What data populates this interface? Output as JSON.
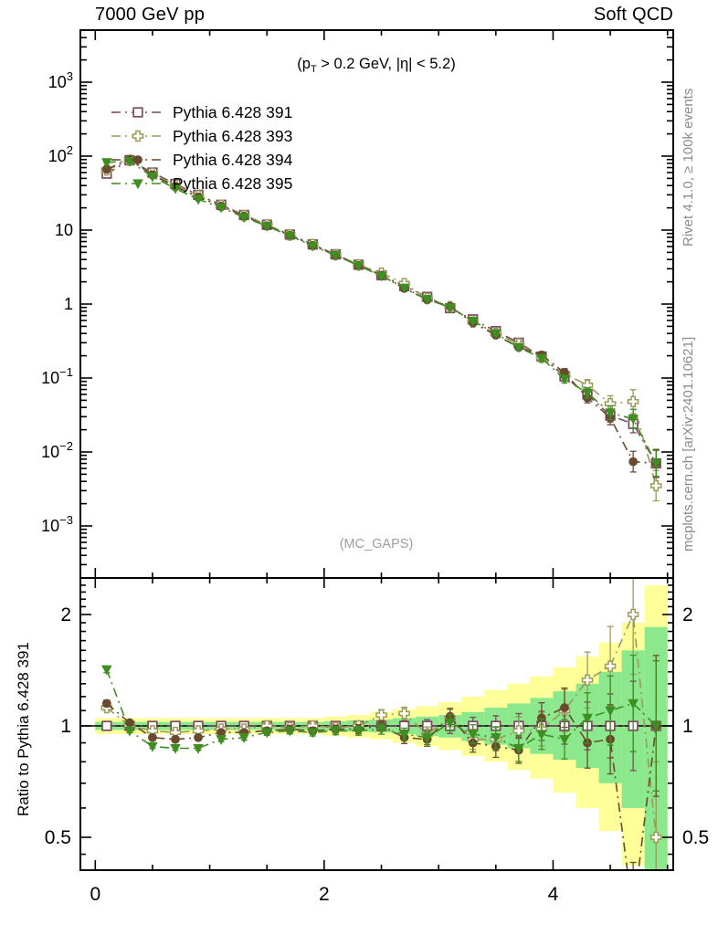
{
  "figure": {
    "title_left": "7000 GeV pp",
    "title_right": "Soft QCD",
    "annotation": {
      "pre": "(p",
      "sub": "T",
      "post": " > 0.2 GeV, |η| < 5.2)"
    },
    "watermark": "(MC_GAPS)",
    "side_label_top": "Rivet 4.1.0, ≥ 100k events",
    "side_label_bottom": "mcplots.cern.ch [arXiv:2401.10621]",
    "ratio_axis_label": "Ratio to Pythia 6.428 391"
  },
  "colors": {
    "frame": "#000000",
    "gray_text": "#8c8c8c",
    "watermark_text": "#9e9e9e",
    "band_yellow": "#ffff99",
    "band_green": "#8ce88c",
    "series_391": "#7a4a5e",
    "series_393": "#9a9a5a",
    "series_394": "#6a4a2e",
    "series_395": "#3e8e22"
  },
  "chart_data": {
    "type": "line",
    "xlabel": "",
    "ylabel_main": "",
    "ylabel_ratio": "Ratio to Pythia 6.428 391",
    "axes": {
      "xlim": [
        -0.13,
        5.05
      ],
      "main_ylog_lim": [
        -3.7,
        3.7
      ],
      "ratio_lim": [
        0.41,
        2.51
      ],
      "x_major_ticks": [
        0,
        2,
        4
      ],
      "x_minor_ticks": [
        0.5,
        1,
        1.5,
        2.5,
        3,
        3.5,
        4.5,
        5
      ],
      "x_tick_labels": [
        {
          "v": 0,
          "t": "0"
        },
        {
          "v": 2,
          "t": "2"
        },
        {
          "v": 4,
          "t": "4"
        }
      ],
      "main_y_tick_labels": [
        {
          "v": 1000,
          "m": "10",
          "e": "3"
        },
        {
          "v": 100,
          "m": "10",
          "e": "2"
        },
        {
          "v": 10,
          "m": "10",
          "e": ""
        },
        {
          "v": 1,
          "m": "1",
          "e": ""
        },
        {
          "v": 0.1,
          "m": "10",
          "e": "−1"
        },
        {
          "v": 0.01,
          "m": "10",
          "e": "−2"
        },
        {
          "v": 0.001,
          "m": "10",
          "e": "−3"
        }
      ],
      "ratio_y_tick_labels": [
        {
          "v": 2,
          "t": "2"
        },
        {
          "v": 1,
          "t": "1"
        },
        {
          "v": 0.5,
          "t": "0.5"
        }
      ],
      "ratio_y_minor_ticks": [
        0.45,
        0.6,
        0.7,
        0.8,
        0.9,
        1.1,
        1.2,
        1.3,
        1.4,
        1.5,
        1.6,
        1.7,
        1.8,
        1.9,
        2.1,
        2.2,
        2.3,
        2.4,
        2.5
      ],
      "grid": false,
      "legend_position": "top-left-inside"
    },
    "bin_half_width": 0.1,
    "x": [
      0.1,
      0.3,
      0.5,
      0.7,
      0.9,
      1.1,
      1.3,
      1.5,
      1.7,
      1.9,
      2.1,
      2.3,
      2.5,
      2.7,
      2.9,
      3.1,
      3.3,
      3.5,
      3.7,
      3.9,
      4.1,
      4.3,
      4.5,
      4.7,
      4.9
    ],
    "series": [
      {
        "name": "Pythia 6.428 391",
        "marker": "square-open",
        "color": "#7a4a5e",
        "is_reference": true,
        "values": [
          58,
          88,
          60,
          42,
          30,
          22,
          16,
          11.8,
          8.7,
          6.4,
          4.7,
          3.4,
          2.45,
          1.75,
          1.25,
          0.88,
          0.62,
          0.43,
          0.3,
          0.195,
          0.105,
          0.06,
          0.031,
          0.024,
          0.007
        ],
        "ratio": [
          1,
          1,
          1,
          1,
          1,
          1,
          1,
          1,
          1,
          1,
          1,
          1,
          1,
          1,
          1,
          1,
          1,
          1,
          1,
          1,
          1,
          1,
          1,
          1,
          1
        ],
        "err_frac": [
          0.02,
          0.012,
          0.012,
          0.012,
          0.012,
          0.012,
          0.014,
          0.016,
          0.018,
          0.02,
          0.022,
          0.026,
          0.03,
          0.034,
          0.04,
          0.048,
          0.055,
          0.065,
          0.08,
          0.095,
          0.12,
          0.16,
          0.22,
          0.32,
          0.5
        ]
      },
      {
        "name": "Pythia 6.428 393",
        "marker": "cross-open",
        "color": "#9a9a5a",
        "is_reference": false,
        "values": [
          65,
          88,
          58.2,
          40.3,
          29.1,
          21.6,
          15.7,
          11.8,
          8.6,
          6.4,
          4.65,
          3.4,
          2.62,
          1.89,
          1.19,
          0.92,
          0.57,
          0.4,
          0.29,
          0.19,
          0.115,
          0.08,
          0.045,
          0.048,
          0.0035
        ],
        "ratio": [
          1.12,
          1.0,
          0.97,
          0.96,
          0.97,
          0.98,
          0.98,
          1.0,
          0.99,
          1.0,
          0.99,
          1.0,
          1.07,
          1.08,
          0.95,
          1.05,
          0.92,
          0.92,
          0.97,
          0.98,
          1.1,
          1.33,
          1.45,
          2.0,
          0.5
        ],
        "err_frac": [
          0.02,
          0.012,
          0.012,
          0.012,
          0.012,
          0.014,
          0.016,
          0.018,
          0.02,
          0.022,
          0.025,
          0.03,
          0.034,
          0.04,
          0.046,
          0.055,
          0.065,
          0.075,
          0.09,
          0.11,
          0.14,
          0.19,
          0.28,
          0.45,
          0.6
        ]
      },
      {
        "name": "Pythia 6.428 394",
        "marker": "circle",
        "color": "#6a4a2e",
        "is_reference": false,
        "values": [
          66.7,
          89.8,
          55.8,
          38.6,
          27.9,
          21.1,
          15.4,
          11.4,
          8.5,
          6.2,
          4.6,
          3.33,
          2.45,
          1.63,
          1.15,
          0.93,
          0.56,
          0.38,
          0.26,
          0.205,
          0.118,
          0.054,
          0.029,
          0.0074,
          0.007
        ],
        "ratio": [
          1.15,
          1.02,
          0.93,
          0.92,
          0.93,
          0.96,
          0.96,
          0.97,
          0.98,
          0.97,
          0.98,
          0.98,
          1.0,
          0.93,
          0.92,
          1.06,
          0.9,
          0.88,
          0.86,
          1.05,
          1.12,
          0.9,
          0.92,
          0.31,
          1.0
        ],
        "err_frac": [
          0.02,
          0.012,
          0.012,
          0.012,
          0.012,
          0.014,
          0.016,
          0.018,
          0.02,
          0.022,
          0.025,
          0.028,
          0.032,
          0.038,
          0.044,
          0.052,
          0.06,
          0.07,
          0.085,
          0.1,
          0.13,
          0.17,
          0.24,
          0.38,
          0.55
        ]
      },
      {
        "name": "Pythia 6.428 395",
        "marker": "triangle-down",
        "color": "#3e8e22",
        "is_reference": false,
        "values": [
          82.4,
          85.4,
          52.8,
          36.5,
          26.1,
          20.2,
          14.9,
          11.3,
          8.4,
          6.1,
          4.56,
          3.3,
          2.4,
          1.66,
          1.16,
          0.9,
          0.59,
          0.4,
          0.26,
          0.185,
          0.097,
          0.063,
          0.034,
          0.028,
          0.007
        ],
        "ratio": [
          1.42,
          0.97,
          0.88,
          0.87,
          0.87,
          0.92,
          0.93,
          0.96,
          0.97,
          0.96,
          0.97,
          0.97,
          0.98,
          0.95,
          0.93,
          1.02,
          0.95,
          0.93,
          0.87,
          0.95,
          0.92,
          1.05,
          1.1,
          1.15,
          1.0
        ],
        "err_frac": [
          0.02,
          0.012,
          0.012,
          0.012,
          0.012,
          0.014,
          0.016,
          0.018,
          0.02,
          0.022,
          0.025,
          0.028,
          0.032,
          0.038,
          0.044,
          0.052,
          0.06,
          0.07,
          0.085,
          0.1,
          0.13,
          0.17,
          0.24,
          0.35,
          0.5
        ]
      }
    ],
    "ratio_bands": {
      "yellow_lo": [
        0.95,
        0.95,
        0.95,
        0.95,
        0.95,
        0.95,
        0.95,
        0.95,
        0.95,
        0.95,
        0.94,
        0.93,
        0.92,
        0.9,
        0.88,
        0.86,
        0.83,
        0.8,
        0.76,
        0.72,
        0.66,
        0.6,
        0.52,
        0.42,
        0.3
      ],
      "yellow_hi": [
        1.05,
        1.05,
        1.05,
        1.05,
        1.05,
        1.05,
        1.05,
        1.05,
        1.05,
        1.05,
        1.06,
        1.07,
        1.09,
        1.11,
        1.13,
        1.16,
        1.2,
        1.25,
        1.3,
        1.36,
        1.44,
        1.54,
        1.68,
        1.9,
        2.4
      ],
      "green_lo": [
        0.975,
        0.975,
        0.975,
        0.975,
        0.975,
        0.975,
        0.975,
        0.975,
        0.975,
        0.975,
        0.97,
        0.965,
        0.96,
        0.95,
        0.94,
        0.93,
        0.91,
        0.89,
        0.87,
        0.84,
        0.81,
        0.77,
        0.7,
        0.6,
        0.38
      ],
      "green_hi": [
        1.025,
        1.025,
        1.025,
        1.025,
        1.025,
        1.025,
        1.025,
        1.025,
        1.025,
        1.025,
        1.03,
        1.035,
        1.04,
        1.05,
        1.06,
        1.07,
        1.09,
        1.12,
        1.15,
        1.19,
        1.24,
        1.3,
        1.4,
        1.6,
        1.85
      ]
    },
    "reference_line": 1.0
  }
}
